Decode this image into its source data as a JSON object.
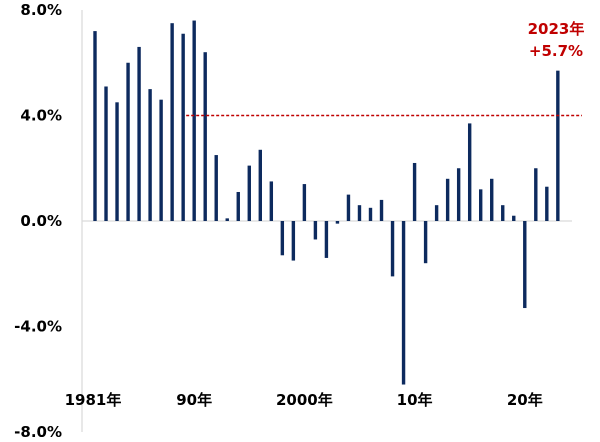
{
  "chart_data": {
    "type": "bar",
    "x": [
      1981,
      1982,
      1983,
      1984,
      1985,
      1986,
      1987,
      1988,
      1989,
      1990,
      1991,
      1992,
      1993,
      1994,
      1995,
      1996,
      1997,
      1998,
      1999,
      2000,
      2001,
      2002,
      2003,
      2004,
      2005,
      2006,
      2007,
      2008,
      2009,
      2010,
      2011,
      2012,
      2013,
      2014,
      2015,
      2016,
      2017,
      2018,
      2019,
      2020,
      2021,
      2022,
      2023
    ],
    "values": [
      7.2,
      5.1,
      4.5,
      6.0,
      6.6,
      5.0,
      4.6,
      7.5,
      7.1,
      7.6,
      6.4,
      2.5,
      0.1,
      1.1,
      2.1,
      2.7,
      1.5,
      -1.3,
      -1.5,
      1.4,
      -0.7,
      -1.4,
      -0.1,
      1.0,
      0.6,
      0.5,
      0.8,
      -2.1,
      -6.2,
      2.2,
      -1.6,
      0.6,
      1.6,
      2.0,
      3.7,
      1.2,
      1.6,
      0.6,
      0.2,
      -3.3,
      2.0,
      1.3,
      5.7
    ],
    "ylim": [
      -8.0,
      8.0
    ],
    "yticks": [
      "8.0%",
      "4.0%",
      "0.0%",
      "-4.0%",
      "-8.0%"
    ],
    "xticks": [
      {
        "year": 1981,
        "label": "1981年"
      },
      {
        "year": 1990,
        "label": "90年"
      },
      {
        "year": 2000,
        "label": "2000年"
      },
      {
        "year": 2010,
        "label": "10年"
      },
      {
        "year": 2020,
        "label": "20年"
      }
    ],
    "bar_color": "#0d2a5e",
    "reference_line": {
      "value": 4.0,
      "from_year": 1990,
      "color": "#c00000",
      "style": "dashed"
    },
    "annotation": {
      "year": 2023,
      "line1": "2023年",
      "line2": "+5.7%",
      "color": "#c00000"
    },
    "grid": false,
    "title": "",
    "xlabel": "",
    "ylabel": ""
  }
}
